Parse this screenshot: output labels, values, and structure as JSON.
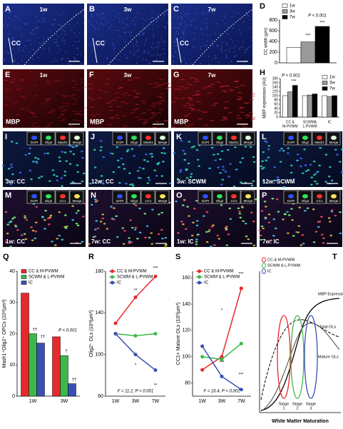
{
  "image_panels": [
    {
      "letter": "A",
      "labels": [
        "1w",
        "CC"
      ]
    },
    {
      "letter": "B",
      "labels": [
        "3w",
        "CC"
      ]
    },
    {
      "letter": "C",
      "labels": [
        "7w",
        "CC"
      ]
    },
    {
      "letter": "E",
      "labels": [
        "1w",
        "MBP"
      ]
    },
    {
      "letter": "F",
      "labels": [
        "3w",
        "MBP"
      ]
    },
    {
      "letter": "G",
      "labels": [
        "7w",
        "MBP"
      ]
    },
    {
      "letter": "I",
      "labels": [
        "3w: CC"
      ],
      "inset": [
        "DAPI",
        "Olig2",
        "Mash1",
        "Merge"
      ]
    },
    {
      "letter": "J",
      "labels": [
        "12w: CC"
      ],
      "inset": [
        "DAPI",
        "Olig2",
        "Mash1",
        "Merge"
      ]
    },
    {
      "letter": "K",
      "labels": [
        "3w: SCWM"
      ],
      "inset": [
        "DAPI",
        "Olig2",
        "Mash1",
        "Merge"
      ]
    },
    {
      "letter": "L",
      "labels": [
        "12w: SCWM"
      ],
      "inset": [
        "DAPI",
        "Olig2",
        "Mash1",
        "Merge"
      ]
    },
    {
      "letter": "M",
      "labels": [
        "1w: CC"
      ],
      "inset": [
        "DAPI",
        "Olig2",
        "CC1",
        "Merge"
      ]
    },
    {
      "letter": "N",
      "labels": [
        "7w: CC"
      ],
      "inset": [
        "DAPI",
        "Olig2",
        "CC1",
        "Merge"
      ]
    },
    {
      "letter": "O",
      "labels": [
        "1w: IC"
      ],
      "inset": [
        "DAPI",
        "Olig2",
        "CC1",
        "Merge"
      ]
    },
    {
      "letter": "P",
      "labels": [
        "7w: IC"
      ],
      "inset": [
        "DAPI",
        "Olig2",
        "CC1",
        "Merge"
      ]
    }
  ],
  "chart_data": [
    {
      "type": "bar",
      "label": "D",
      "y_label": "CC width (µm)",
      "categories": [
        null
      ],
      "series": [
        {
          "name": "1w",
          "color": "#ffffff",
          "values": [
            290
          ]
        },
        {
          "name": "3w",
          "color": "#9a9a9a",
          "values": [
            390
          ]
        },
        {
          "name": "7w",
          "color": "#000000",
          "values": [
            680
          ]
        }
      ],
      "ylim": [
        0,
        800
      ],
      "yticks": [
        0,
        200,
        400,
        600,
        800
      ],
      "annotations": [
        "P < 0.001",
        "***",
        "***"
      ]
    },
    {
      "type": "bar",
      "label": "H",
      "y_label": "MBP expression (AU)",
      "categories": [
        [
          "CC &",
          "M-PVWM"
        ],
        [
          "SCWM&",
          "L-PVWM"
        ],
        [
          "IC"
        ]
      ],
      "series": [
        {
          "name": "1w",
          "color": "#ffffff",
          "values": [
            100,
            100,
            100
          ]
        },
        {
          "name": "3w",
          "color": "#9a9a9a",
          "values": [
            118,
            103,
            95
          ]
        },
        {
          "name": "7w",
          "color": "#000000",
          "values": [
            148,
            108,
            100
          ]
        }
      ],
      "ylim": [
        0,
        180
      ],
      "yticks": [
        0,
        20,
        40,
        60,
        80,
        100,
        120,
        140,
        160,
        180
      ],
      "annotations": [
        "P < 0.001",
        "***"
      ]
    },
    {
      "type": "bar",
      "label": "Q",
      "y_label": "Mash1⁺Olig2⁺ OPCs (10³/µm³)",
      "categories": [
        [
          "1W"
        ],
        [
          "3W"
        ]
      ],
      "series": [
        {
          "name": "CC & M-PVWM",
          "color": "#e8282b",
          "values": [
            33,
            19
          ]
        },
        {
          "name": "SCWM & L-PVWM",
          "color": "#3cb84a",
          "values": [
            20,
            13
          ]
        },
        {
          "name": "IC",
          "color": "#3a4fb5",
          "values": [
            17,
            4
          ]
        }
      ],
      "ylim": [
        0,
        40
      ],
      "yticks": [
        0,
        10,
        20,
        30,
        40
      ],
      "annotations": [
        "††",
        "††",
        "P < 0.001",
        "†",
        "††"
      ]
    },
    {
      "type": "line",
      "label": "R",
      "y_label": "Olig2⁺ OLs (10³/µm³)",
      "categories": [
        [
          "1W"
        ],
        [
          "3W"
        ],
        [
          "7W"
        ]
      ],
      "series": [
        {
          "name": "CC & M-PVWM",
          "color": "#e8282b",
          "values": [
            130,
            155,
            175
          ]
        },
        {
          "name": "SCWM & L-PVWM",
          "color": "#3cb84a",
          "values": [
            120,
            118,
            120
          ]
        },
        {
          "name": "IC",
          "color": "#3a4fb5",
          "values": [
            120,
            100,
            85
          ]
        }
      ],
      "ylim": [
        60,
        180
      ],
      "yticks": [
        60,
        100,
        140,
        180
      ],
      "annotations": [
        "**",
        "***",
        "*",
        "**",
        "F = 11.2, P < 0.001"
      ]
    },
    {
      "type": "line",
      "label": "S",
      "y_label": "CC1+ Mature OLs (10³/µm³)",
      "categories": [
        [
          "1W"
        ],
        [
          "3W"
        ],
        [
          "7W"
        ]
      ],
      "series": [
        {
          "name": "CC & M-PVWM",
          "color": "#e8282b",
          "values": [
            90,
            100,
            152
          ]
        },
        {
          "name": "SCWM & L-PVWM",
          "color": "#3cb84a",
          "values": [
            100,
            98,
            110
          ]
        },
        {
          "name": "IC",
          "color": "#3a4fb5",
          "values": [
            108,
            85,
            75
          ]
        }
      ],
      "ylim": [
        70,
        165
      ],
      "yticks": [
        80,
        100,
        120,
        140,
        160
      ],
      "annotations": [
        "*",
        "***",
        "***",
        "***",
        "F = 16.4, P < 0.001"
      ]
    }
  ],
  "concept_panel": {
    "letter": "T",
    "legend": [
      "CC & M-PVWM",
      "SCWM & L-PVWM",
      "IC"
    ],
    "curve_labels": [
      "MBP Expression",
      "Total OLs",
      "Mature OLs"
    ],
    "stages": [
      [
        "Stage",
        "1"
      ],
      [
        "Stage",
        "2"
      ],
      [
        "Stage",
        "3"
      ]
    ],
    "x_label": "White Matter Maturation"
  }
}
